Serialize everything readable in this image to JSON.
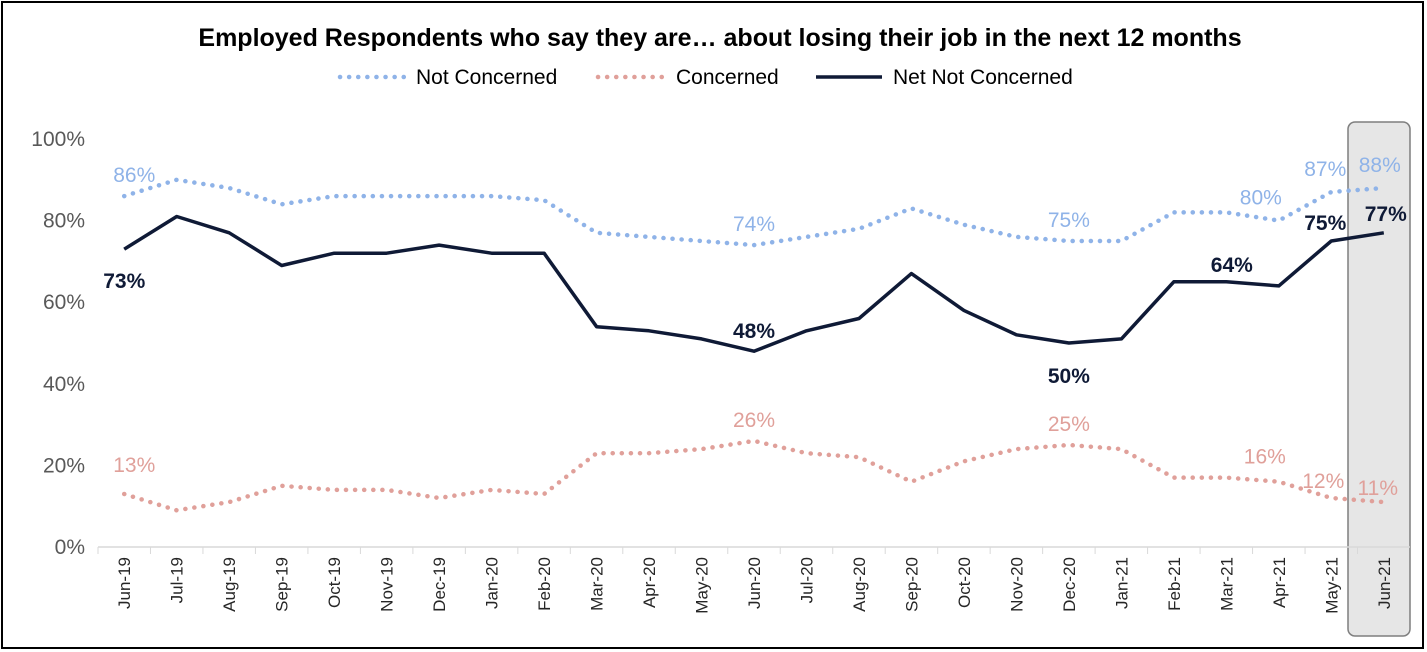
{
  "chart_data": {
    "type": "line",
    "title": "Employed Respondents who say they are… about losing their job in the next 12 months",
    "categories": [
      "Jun-19",
      "Jul-19",
      "Aug-19",
      "Sep-19",
      "Oct-19",
      "Nov-19",
      "Dec-19",
      "Jan-20",
      "Feb-20",
      "Mar-20",
      "Apr-20",
      "May-20",
      "Jun-20",
      "Jul-20",
      "Aug-20",
      "Sep-20",
      "Oct-20",
      "Nov-20",
      "Dec-20",
      "Jan-21",
      "Feb-21",
      "Mar-21",
      "Apr-21",
      "May-21",
      "Jun-21"
    ],
    "ylim": [
      0,
      100
    ],
    "yticks": [
      "0%",
      "20%",
      "40%",
      "60%",
      "80%",
      "100%"
    ],
    "grid": false,
    "legend_position": "top",
    "highlight_category": "Jun-21",
    "series": [
      {
        "name": "Not Concerned",
        "color": "#8fb3e8",
        "style": "dotted",
        "values": [
          86,
          90,
          88,
          84,
          86,
          86,
          86,
          86,
          85,
          77,
          76,
          75,
          74,
          76,
          78,
          83,
          79,
          76,
          75,
          75,
          82,
          82,
          80,
          87,
          88
        ]
      },
      {
        "name": "Concerned",
        "color": "#e0a09a",
        "style": "dotted",
        "values": [
          13,
          9,
          11,
          15,
          14,
          14,
          12,
          14,
          13,
          23,
          23,
          24,
          26,
          23,
          22,
          16,
          21,
          24,
          25,
          24,
          17,
          17,
          16,
          12,
          11
        ]
      },
      {
        "name": "Net Not Concerned",
        "color": "#0f1a36",
        "style": "solid",
        "values": [
          73,
          81,
          77,
          69,
          72,
          72,
          74,
          72,
          72,
          54,
          53,
          51,
          48,
          53,
          56,
          67,
          58,
          52,
          50,
          51,
          65,
          65,
          64,
          75,
          77
        ]
      }
    ],
    "data_labels": {
      "Not Concerned": [
        {
          "index": 0,
          "text": "86%"
        },
        {
          "index": 12,
          "text": "74%"
        },
        {
          "index": 18,
          "text": "75%"
        },
        {
          "index": 22,
          "text": "80%"
        },
        {
          "index": 23,
          "text": "87%"
        },
        {
          "index": 24,
          "text": "88%"
        }
      ],
      "Concerned": [
        {
          "index": 0,
          "text": "13%"
        },
        {
          "index": 12,
          "text": "26%"
        },
        {
          "index": 18,
          "text": "25%"
        },
        {
          "index": 22,
          "text": "16%"
        },
        {
          "index": 23,
          "text": "12%"
        },
        {
          "index": 24,
          "text": "11%"
        }
      ],
      "Net Not Concerned": [
        {
          "index": 0,
          "text": "73%"
        },
        {
          "index": 12,
          "text": "48%"
        },
        {
          "index": 18,
          "text": "50%"
        },
        {
          "index": 22,
          "text": "64%"
        },
        {
          "index": 23,
          "text": "75%"
        },
        {
          "index": 24,
          "text": "77%"
        }
      ]
    }
  }
}
